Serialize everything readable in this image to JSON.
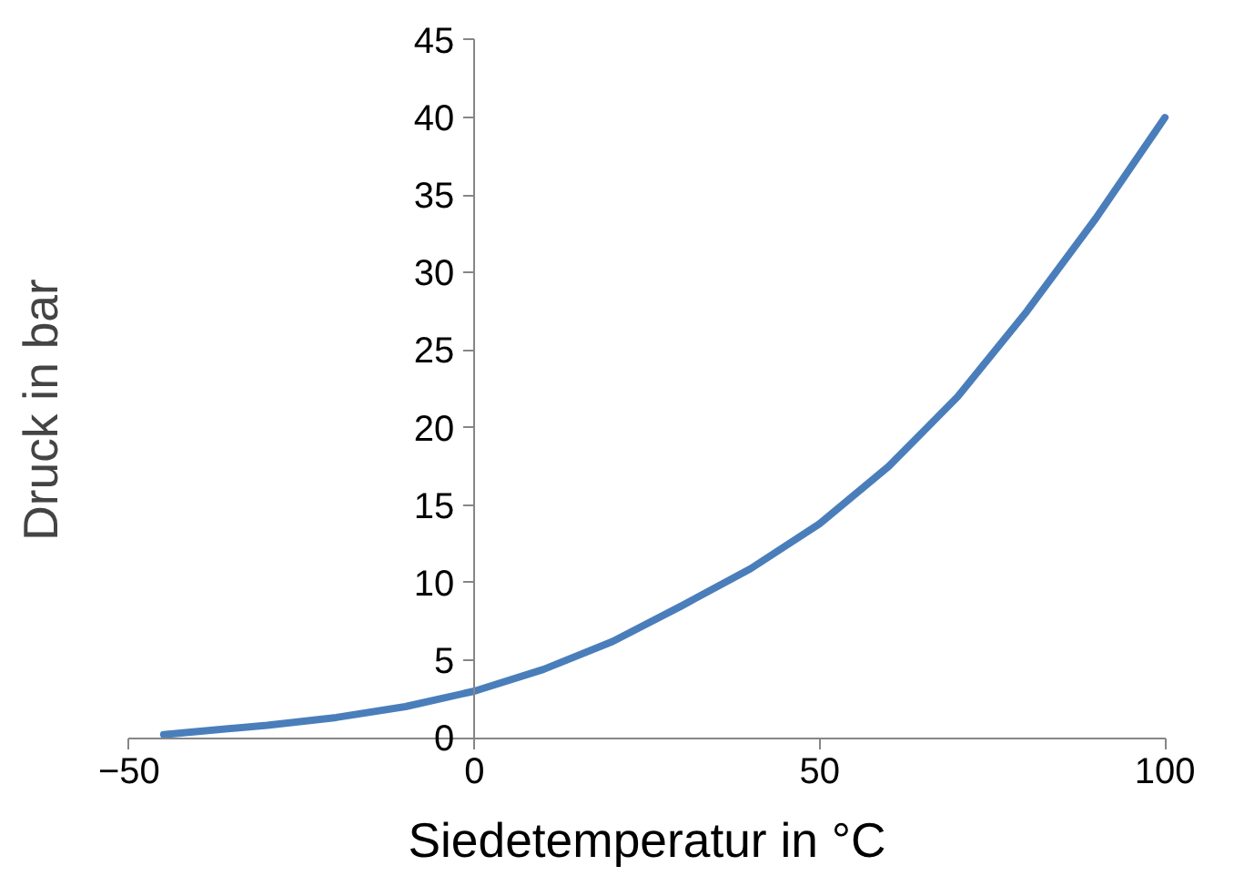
{
  "chart_data": {
    "type": "line",
    "xlabel": "Siedetemperatur in °C",
    "ylabel": "Druck in bar",
    "xlim": [
      -50,
      100
    ],
    "ylim": [
      0,
      45
    ],
    "xticks": [
      -50,
      0,
      50,
      100
    ],
    "yticks": [
      0,
      5,
      10,
      15,
      20,
      25,
      30,
      35,
      40,
      45
    ],
    "grid": false,
    "marker": "none",
    "line_style": "solid",
    "series": [
      {
        "color": "#4a7ebb",
        "x": [
          -45,
          -40,
          -30,
          -20,
          -10,
          0,
          10,
          20,
          30,
          40,
          50,
          60,
          70,
          80,
          90,
          100
        ],
        "values": [
          0.2,
          0.4,
          0.8,
          1.3,
          2.0,
          3.0,
          4.4,
          6.2,
          8.5,
          10.9,
          13.8,
          17.5,
          22,
          27.5,
          33.5,
          40
        ]
      }
    ]
  }
}
